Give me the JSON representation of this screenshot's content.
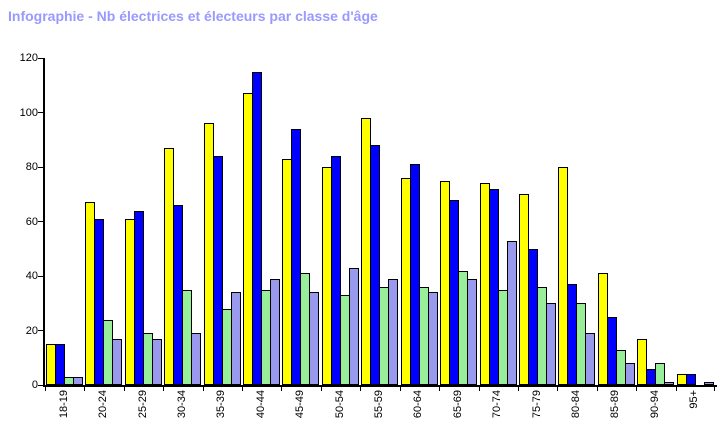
{
  "page": {
    "background": "#ffffff"
  },
  "title": {
    "text": "Infographie - Nb électrices et électeurs par classe d'âge",
    "color": "#9999ff"
  },
  "chart_data": {
    "type": "bar",
    "title": "Infographie - Nb électrices et électeurs par classe d'âge",
    "categories": [
      "18-19",
      "20-24",
      "25-29",
      "30-34",
      "35-39",
      "40-44",
      "45-49",
      "50-54",
      "55-59",
      "60-64",
      "65-69",
      "70-74",
      "75-79",
      "80-84",
      "85-89",
      "90-94",
      "95+"
    ],
    "series": [
      {
        "name": "barres-jaunes",
        "color": "#ffff00",
        "values": [
          15,
          67,
          61,
          87,
          96,
          107,
          83,
          80,
          98,
          76,
          75,
          74,
          70,
          80,
          41,
          17,
          4
        ]
      },
      {
        "name": "barres-bleues",
        "color": "#0000ff",
        "values": [
          15,
          61,
          64,
          66,
          84,
          115,
          94,
          84,
          88,
          81,
          68,
          72,
          50,
          37,
          25,
          6,
          4
        ]
      },
      {
        "name": "barres-vertes",
        "color": "#99ee99",
        "values": [
          3,
          24,
          19,
          35,
          28,
          35,
          41,
          33,
          36,
          36,
          42,
          35,
          36,
          30,
          13,
          8,
          0
        ]
      },
      {
        "name": "barres-violettes",
        "color": "#9999ee",
        "values": [
          3,
          17,
          17,
          19,
          34,
          39,
          34,
          43,
          39,
          34,
          39,
          53,
          30,
          19,
          8,
          1,
          1
        ]
      }
    ],
    "xlabel": "",
    "ylabel": "",
    "ylim": [
      0,
      120
    ],
    "yticks": [
      0,
      20,
      40,
      60,
      80,
      100,
      120
    ],
    "grid": false,
    "legend": "none",
    "axis_color": "#000000",
    "bar_border_color": "#000000"
  }
}
